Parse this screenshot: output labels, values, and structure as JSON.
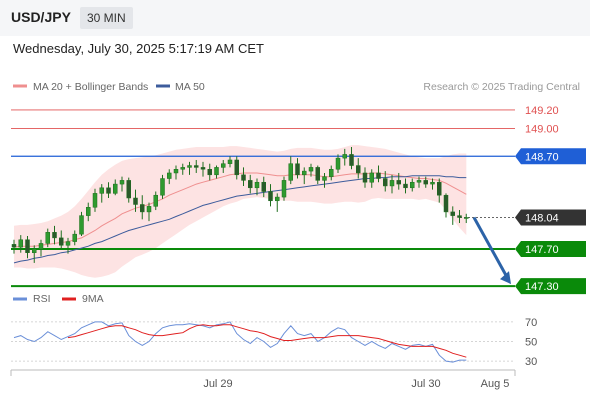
{
  "header": {
    "symbol": "USD/JPY",
    "timeframe": "30 MIN"
  },
  "datetime": "Wednesday, July 30, 2025 5:17:19 AM CET",
  "legend": {
    "ma20": "MA 20 + Bollinger Bands",
    "ma50": "MA 50",
    "copyright": "Research © 2025 Trading Central",
    "rsi": "RSI",
    "rsi_ma": "9MA"
  },
  "colors": {
    "ma20": "#ef8f8f",
    "ma50": "#3d5c9c",
    "bollinger_fill": "#fde3e3",
    "resistance": "#e05050",
    "pivot": "#1f5fd6",
    "support": "#0a8a0a",
    "current": "#333333",
    "candle": "#2f9a2f",
    "arrow": "#2c63a8",
    "rsi": "#6a8fd8",
    "rsi_ma": "#e02020"
  },
  "chart_data": [
    {
      "type": "candlestick",
      "y_range": [
        147.15,
        149.35
      ],
      "x_labels": [
        "Jul 29",
        "Jul 30",
        "Aug 5"
      ],
      "levels": [
        {
          "name": "resistance-2",
          "value": 149.2,
          "label": "149.20",
          "kind": "resistance"
        },
        {
          "name": "resistance-1",
          "value": 149.0,
          "label": "149.00",
          "kind": "resistance"
        },
        {
          "name": "pivot",
          "value": 148.7,
          "label": "148.70",
          "kind": "pivot"
        },
        {
          "name": "current-price",
          "value": 148.04,
          "label": "148.04",
          "kind": "current"
        },
        {
          "name": "support-1",
          "value": 147.7,
          "label": "147.70",
          "kind": "support"
        },
        {
          "name": "support-2",
          "value": 147.3,
          "label": "147.30",
          "kind": "support"
        }
      ],
      "forecast": {
        "from": 148.04,
        "to": 147.3
      },
      "candles": [
        [
          147.75,
          147.8,
          147.65,
          147.72
        ],
        [
          147.72,
          147.85,
          147.66,
          147.8
        ],
        [
          147.8,
          147.84,
          147.6,
          147.66
        ],
        [
          147.66,
          147.74,
          147.55,
          147.7
        ],
        [
          147.7,
          147.8,
          147.62,
          147.76
        ],
        [
          147.76,
          147.92,
          147.72,
          147.88
        ],
        [
          147.88,
          147.95,
          147.75,
          147.82
        ],
        [
          147.82,
          147.9,
          147.7,
          147.74
        ],
        [
          147.74,
          147.82,
          147.65,
          147.78
        ],
        [
          147.78,
          147.9,
          147.74,
          147.86
        ],
        [
          147.86,
          148.1,
          147.84,
          148.06
        ],
        [
          148.06,
          148.2,
          148.0,
          148.15
        ],
        [
          148.15,
          148.35,
          148.1,
          148.3
        ],
        [
          148.3,
          148.4,
          148.2,
          148.36
        ],
        [
          148.36,
          148.42,
          148.25,
          148.3
        ],
        [
          148.3,
          148.45,
          148.28,
          148.4
        ],
        [
          148.4,
          148.48,
          148.32,
          148.44
        ],
        [
          148.44,
          148.47,
          148.2,
          148.25
        ],
        [
          148.25,
          148.34,
          148.1,
          148.18
        ],
        [
          148.18,
          148.28,
          148.02,
          148.1
        ],
        [
          148.1,
          148.2,
          148.0,
          148.16
        ],
        [
          148.16,
          148.32,
          148.12,
          148.28
        ],
        [
          148.28,
          148.5,
          148.24,
          148.46
        ],
        [
          148.46,
          148.56,
          148.4,
          148.52
        ],
        [
          148.52,
          148.6,
          148.45,
          148.56
        ],
        [
          148.56,
          148.62,
          148.5,
          148.58
        ],
        [
          148.58,
          148.64,
          148.5,
          148.6
        ],
        [
          148.6,
          148.66,
          148.52,
          148.58
        ],
        [
          148.58,
          148.64,
          148.48,
          148.56
        ],
        [
          148.56,
          148.62,
          148.44,
          148.5
        ],
        [
          148.5,
          148.6,
          148.46,
          148.58
        ],
        [
          148.58,
          148.66,
          148.52,
          148.62
        ],
        [
          148.62,
          148.7,
          148.58,
          148.66
        ],
        [
          148.66,
          148.7,
          148.45,
          148.5
        ],
        [
          148.5,
          148.58,
          148.38,
          148.44
        ],
        [
          148.44,
          148.5,
          148.3,
          148.36
        ],
        [
          148.36,
          148.46,
          148.28,
          148.42
        ],
        [
          148.42,
          148.48,
          148.26,
          148.32
        ],
        [
          148.32,
          148.4,
          148.16,
          148.22
        ],
        [
          148.22,
          148.3,
          148.1,
          148.26
        ],
        [
          148.26,
          148.48,
          148.22,
          148.44
        ],
        [
          148.44,
          148.7,
          148.4,
          148.62
        ],
        [
          148.62,
          148.68,
          148.46,
          148.5
        ],
        [
          148.5,
          148.58,
          148.4,
          148.54
        ],
        [
          148.54,
          148.62,
          148.48,
          148.58
        ],
        [
          148.58,
          148.6,
          148.4,
          148.44
        ],
        [
          148.44,
          148.52,
          148.36,
          148.48
        ],
        [
          148.48,
          148.6,
          148.44,
          148.56
        ],
        [
          148.56,
          148.72,
          148.52,
          148.68
        ],
        [
          148.68,
          148.78,
          148.6,
          148.72
        ],
        [
          148.72,
          148.8,
          148.56,
          148.6
        ],
        [
          148.6,
          148.68,
          148.46,
          148.52
        ],
        [
          148.52,
          148.58,
          148.36,
          148.42
        ],
        [
          148.42,
          148.56,
          148.36,
          148.52
        ],
        [
          148.52,
          148.6,
          148.42,
          148.46
        ],
        [
          148.46,
          148.54,
          148.32,
          148.38
        ],
        [
          148.38,
          148.5,
          148.3,
          148.44
        ],
        [
          148.44,
          148.52,
          148.34,
          148.4
        ],
        [
          148.4,
          148.46,
          148.3,
          148.36
        ],
        [
          148.36,
          148.46,
          148.32,
          148.42
        ],
        [
          148.42,
          148.48,
          148.36,
          148.44
        ],
        [
          148.44,
          148.48,
          148.36,
          148.4
        ],
        [
          148.4,
          148.46,
          148.34,
          148.42
        ],
        [
          148.42,
          148.46,
          148.2,
          148.28
        ],
        [
          148.28,
          148.3,
          148.04,
          148.1
        ],
        [
          148.1,
          148.16,
          147.96,
          148.06
        ],
        [
          148.06,
          148.12,
          147.98,
          148.04
        ],
        [
          148.04,
          148.08,
          147.98,
          148.04
        ]
      ],
      "ma20": [
        147.72,
        147.73,
        147.73,
        147.73,
        147.74,
        147.75,
        147.76,
        147.77,
        147.78,
        147.8,
        147.82,
        147.86,
        147.9,
        147.95,
        147.99,
        148.03,
        148.08,
        148.11,
        148.14,
        148.16,
        148.18,
        148.21,
        148.24,
        148.28,
        148.31,
        148.34,
        148.37,
        148.4,
        148.42,
        148.44,
        148.46,
        148.48,
        148.5,
        148.51,
        148.52,
        148.52,
        148.52,
        148.51,
        148.5,
        148.49,
        148.49,
        148.5,
        148.5,
        148.5,
        148.5,
        148.49,
        148.48,
        148.48,
        148.49,
        148.5,
        148.51,
        148.51,
        148.51,
        148.52,
        148.52,
        148.51,
        148.5,
        148.49,
        148.48,
        148.47,
        148.46,
        148.46,
        148.45,
        148.44,
        148.41,
        148.37,
        148.33,
        148.29
      ],
      "ma50": [
        147.55,
        147.57,
        147.58,
        147.6,
        147.61,
        147.63,
        147.64,
        147.66,
        147.67,
        147.69,
        147.71,
        147.73,
        147.76,
        147.78,
        147.81,
        147.84,
        147.87,
        147.9,
        147.92,
        147.94,
        147.96,
        147.98,
        148.0,
        148.02,
        148.05,
        148.08,
        148.11,
        148.14,
        148.17,
        148.19,
        148.21,
        148.23,
        148.25,
        148.27,
        148.28,
        148.29,
        148.3,
        148.31,
        148.32,
        148.33,
        148.34,
        148.35,
        148.36,
        148.37,
        148.38,
        148.39,
        148.4,
        148.41,
        148.42,
        148.43,
        148.44,
        148.45,
        148.46,
        148.46,
        148.47,
        148.47,
        148.48,
        148.48,
        148.48,
        148.49,
        148.49,
        148.49,
        148.49,
        148.49,
        148.48,
        148.48,
        148.47,
        148.47
      ],
      "bb_upper": [
        147.95,
        147.96,
        147.96,
        147.97,
        147.98,
        148.0,
        148.03,
        148.06,
        148.1,
        148.16,
        148.24,
        148.33,
        148.42,
        148.5,
        148.56,
        148.61,
        148.65,
        148.67,
        148.68,
        148.69,
        148.7,
        148.71,
        148.73,
        148.75,
        148.77,
        148.78,
        148.79,
        148.8,
        148.8,
        148.8,
        148.8,
        148.8,
        148.81,
        148.81,
        148.8,
        148.79,
        148.78,
        148.77,
        148.76,
        148.75,
        148.76,
        148.78,
        148.79,
        148.79,
        148.79,
        148.78,
        148.77,
        148.77,
        148.78,
        148.8,
        148.82,
        148.82,
        148.81,
        148.8,
        148.79,
        148.78,
        148.76,
        148.74,
        148.72,
        148.7,
        148.69,
        148.68,
        148.68,
        148.68,
        148.7,
        148.72,
        148.73,
        148.73
      ],
      "bb_lower": [
        147.5,
        147.5,
        147.49,
        147.49,
        147.5,
        147.5,
        147.5,
        147.49,
        147.47,
        147.45,
        147.42,
        147.4,
        147.39,
        147.4,
        147.42,
        147.45,
        147.51,
        147.56,
        147.61,
        147.64,
        147.67,
        147.71,
        147.76,
        147.81,
        147.86,
        147.91,
        147.96,
        148.0,
        148.04,
        148.08,
        148.12,
        148.16,
        148.19,
        148.21,
        148.24,
        148.25,
        148.26,
        148.25,
        148.24,
        148.23,
        148.22,
        148.22,
        148.21,
        148.21,
        148.21,
        148.2,
        148.19,
        148.19,
        148.2,
        148.21,
        148.21,
        148.2,
        148.21,
        148.24,
        148.25,
        148.24,
        148.24,
        148.24,
        148.24,
        148.24,
        148.23,
        148.24,
        148.22,
        148.2,
        148.12,
        148.02,
        147.93,
        147.85
      ]
    },
    {
      "type": "line",
      "series": [
        {
          "name": "RSI",
          "values": [
            54,
            56,
            52,
            50,
            54,
            60,
            56,
            52,
            55,
            58,
            64,
            67,
            70,
            70,
            66,
            68,
            69,
            56,
            50,
            46,
            50,
            58,
            64,
            66,
            67,
            67,
            68,
            67,
            66,
            64,
            67,
            68,
            70,
            58,
            52,
            48,
            54,
            50,
            44,
            48,
            58,
            66,
            58,
            56,
            58,
            50,
            54,
            60,
            64,
            62,
            54,
            50,
            46,
            50,
            46,
            43,
            48,
            45,
            42,
            46,
            47,
            45,
            47,
            36,
            30,
            29,
            31,
            31
          ]
        },
        {
          "name": "9MA",
          "values": [
            null,
            null,
            null,
            null,
            null,
            null,
            null,
            null,
            54,
            55,
            57,
            59,
            61,
            63,
            65,
            66,
            66,
            64,
            62,
            59,
            57,
            56,
            56,
            57,
            58,
            59,
            63,
            66,
            67,
            66,
            66,
            67,
            67,
            65,
            63,
            61,
            60,
            58,
            55,
            53,
            51,
            51,
            52,
            53,
            54,
            54,
            54,
            55,
            56,
            56,
            56,
            56,
            55,
            54,
            53,
            51,
            49,
            47,
            46,
            45,
            45,
            45,
            45,
            43,
            41,
            38,
            36,
            34
          ]
        }
      ],
      "y_range": [
        25,
        76
      ],
      "y_ticks": [
        "70",
        "50",
        "30"
      ],
      "y_tick_values": [
        70,
        50,
        30
      ]
    }
  ]
}
